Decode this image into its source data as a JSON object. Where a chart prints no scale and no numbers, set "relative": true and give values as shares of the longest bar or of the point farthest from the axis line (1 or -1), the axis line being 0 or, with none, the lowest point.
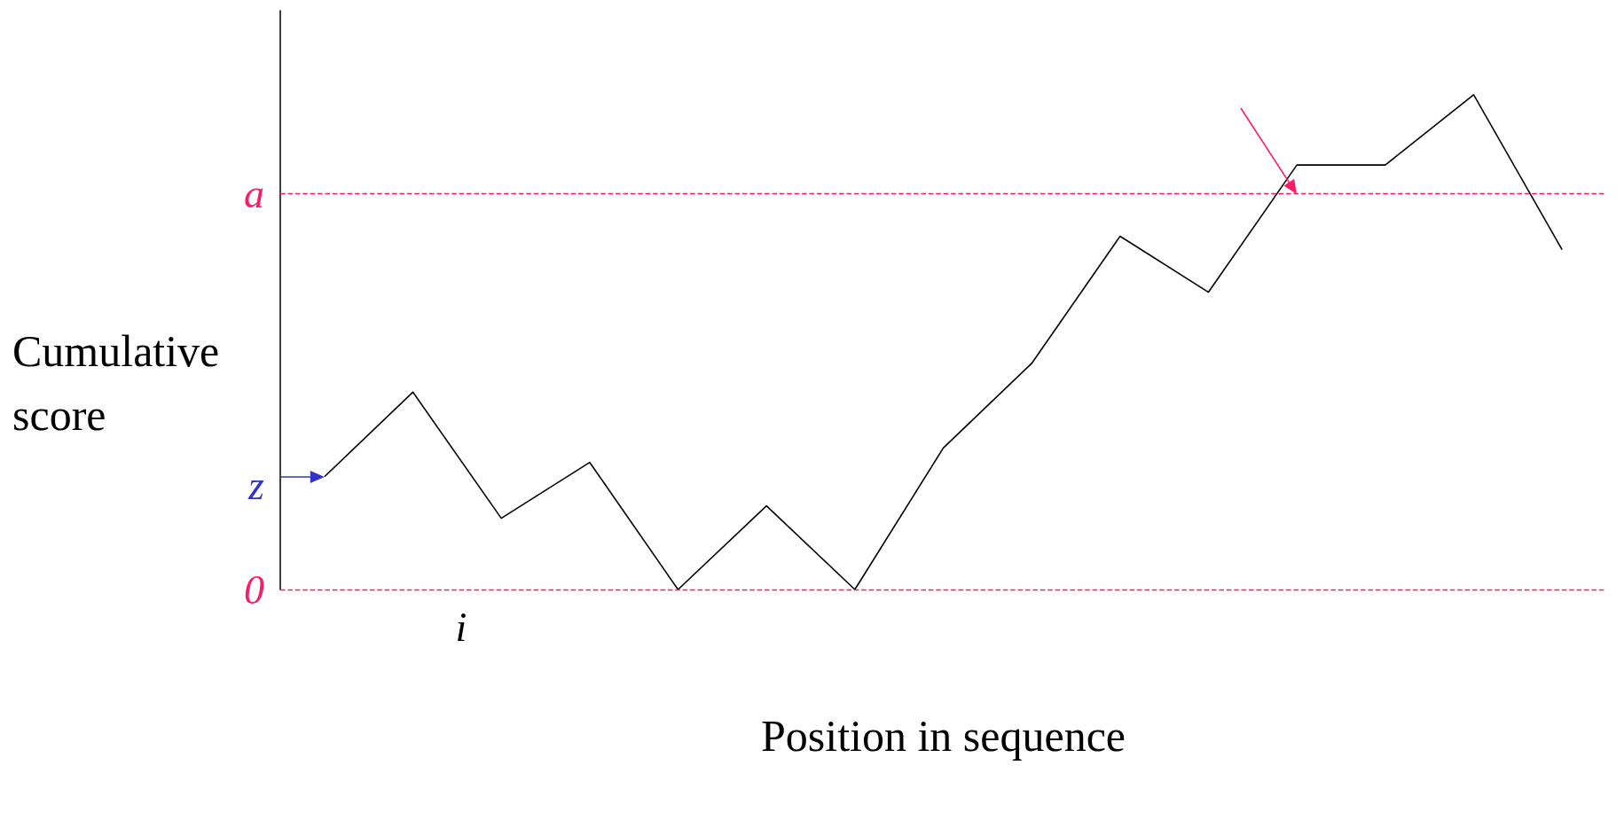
{
  "chart_data": {
    "type": "line",
    "relative": true,
    "categories": [
      null,
      null,
      null,
      null,
      null,
      null,
      null,
      null,
      null,
      null,
      null,
      null,
      null,
      null,
      null
    ],
    "series": [
      {
        "color": "#000000",
        "values": [
          0.228,
          0.399,
          0.144,
          0.257,
          0,
          0.169,
          0,
          0.286,
          0.457,
          0.714,
          0.601,
          0.858,
          0.858,
          1,
          0.687
        ]
      }
    ],
    "xlabel": "Position in sequence",
    "ylabel": "Cumulative score",
    "ref_lines": [
      {
        "axis": "y",
        "value": 0,
        "label": "0",
        "color": "#ff1a66",
        "line_style": "dashed"
      },
      {
        "axis": "y",
        "value": 0.8,
        "label": "a",
        "color": "#ff1a66",
        "line_style": "dashed"
      }
    ],
    "annotations": [
      "z",
      "i"
    ]
  }
}
